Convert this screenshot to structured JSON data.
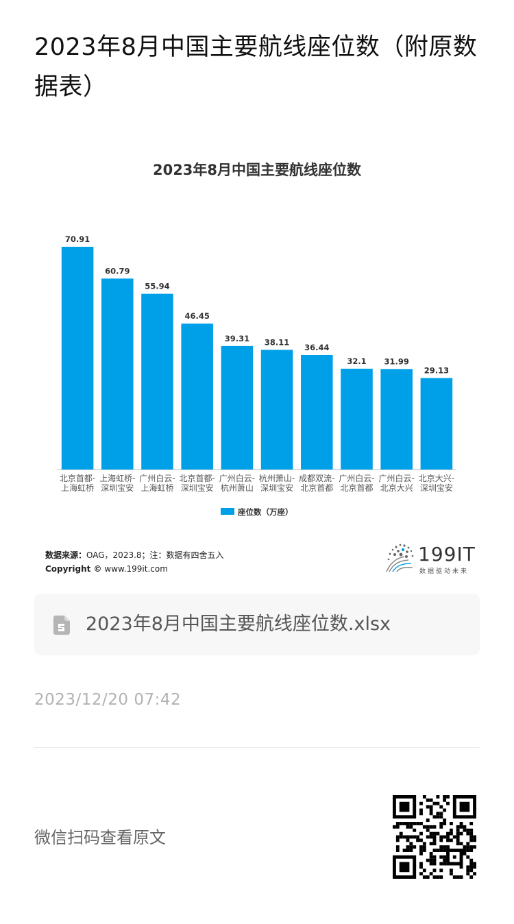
{
  "article": {
    "title": "2023年8月中国主要航线座位数（附原数据表）"
  },
  "chart_data": {
    "type": "bar",
    "title": "2023年8月中国主要航线座位数",
    "categories": [
      [
        "北京首都-",
        "上海虹桥"
      ],
      [
        "上海虹桥-",
        "深圳宝安"
      ],
      [
        "广州白云-",
        "上海虹桥"
      ],
      [
        "北京首都-",
        "深圳宝安"
      ],
      [
        "广州白云-",
        "杭州萧山"
      ],
      [
        "杭州萧山-",
        "深圳宝安"
      ],
      [
        "成都双流-",
        "北京首都"
      ],
      [
        "广州白云-",
        "北京首都"
      ],
      [
        "广州白云-",
        "北京大兴"
      ],
      [
        "北京大兴-",
        "深圳宝安"
      ]
    ],
    "series": [
      {
        "name": "座位数（万座）",
        "values": [
          70.91,
          60.79,
          55.94,
          46.45,
          39.31,
          38.11,
          36.44,
          32.1,
          31.99,
          29.13
        ],
        "labels": [
          "70.91",
          "60.79",
          "55.94",
          "46.45",
          "39.31",
          "38.11",
          "36.44",
          "32.1",
          "31.99",
          "29.13"
        ]
      }
    ],
    "ylim": [
      0,
      72
    ],
    "grid": false,
    "legend": "bottom-center",
    "bar_color": "#00a0e9"
  },
  "chart_source": {
    "label": "数据来源：",
    "text": "OAG，2023.8；注：数据有四舍五入",
    "copyright": "Copyright ©",
    "url": "www.199it.com"
  },
  "brand": {
    "name": "199IT",
    "slogan": "数据驱动未来"
  },
  "file": {
    "name": "2023年8月中国主要航线座位数.xlsx"
  },
  "timestamp": "2023/12/20 07:42",
  "footer": {
    "scan_text": "微信扫码查看原文"
  }
}
